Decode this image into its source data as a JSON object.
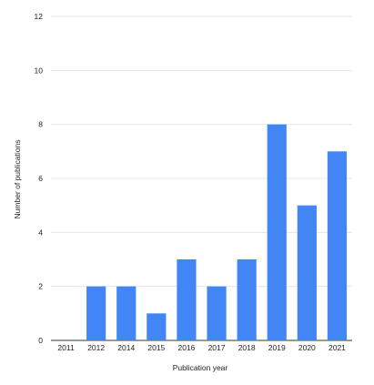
{
  "chart_data": {
    "type": "bar",
    "title": "",
    "xlabel": "Publication year",
    "ylabel": "Number of publications",
    "categories": [
      "2011",
      "2012",
      "2014",
      "2015",
      "2016",
      "2017",
      "2018",
      "2019",
      "2020",
      "2021"
    ],
    "values": [
      0,
      2,
      2,
      1,
      3,
      2,
      3,
      8,
      5,
      7
    ],
    "ylim": [
      0,
      12
    ],
    "yticks": [
      0,
      2,
      4,
      6,
      8,
      10,
      12
    ],
    "grid": true,
    "legend": "none",
    "bar_color": "#4285f4"
  }
}
